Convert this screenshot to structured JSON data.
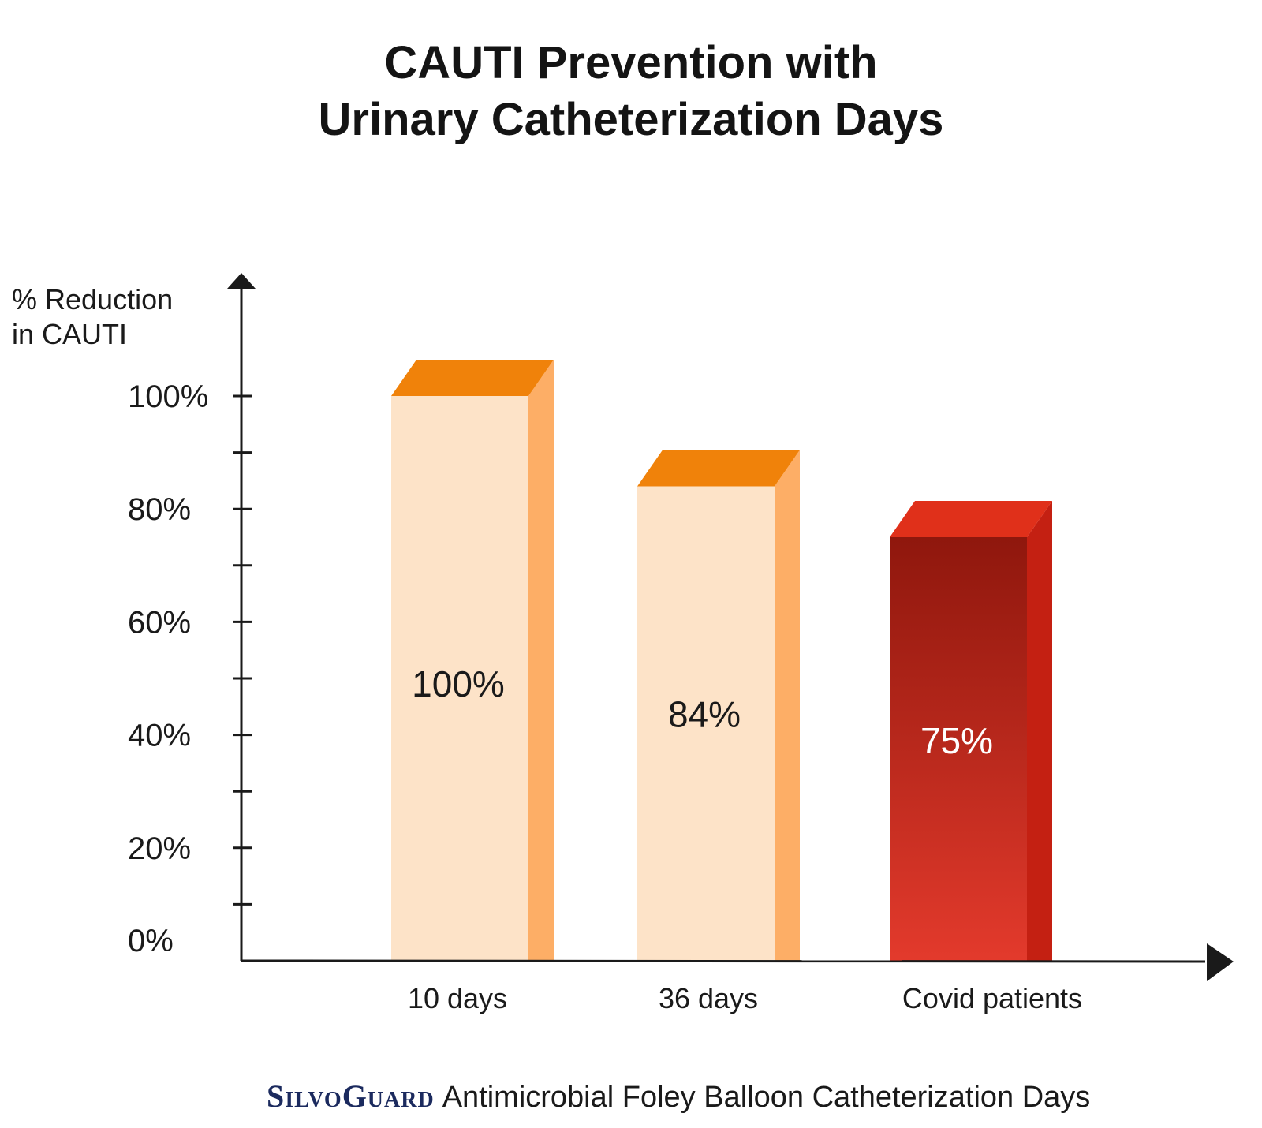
{
  "chart_data": {
    "type": "bar",
    "title_lines": [
      "CAUTI Prevention with",
      "Urinary Catheterization Days"
    ],
    "ylabel_lines": [
      "% Reduction",
      "in CAUTI"
    ],
    "categories": [
      "10 days",
      "36 days",
      "Covid patients"
    ],
    "values": [
      100,
      84,
      75
    ],
    "data_labels": [
      "100%",
      "84%",
      "75%"
    ],
    "ytick_labels": [
      "0%",
      "20%",
      "40%",
      "60%",
      "80%",
      "100%"
    ],
    "ytick_values": [
      0,
      20,
      40,
      60,
      80,
      100
    ],
    "ylim": [
      0,
      100
    ],
    "grid": false,
    "colors": {
      "light_front": "#fde3c8",
      "light_side": "#fdae66",
      "light_top": "#f0820a",
      "red_front_top": "#8f170d",
      "red_front_bottom": "#e33a2c",
      "red_side": "#c42012",
      "red_top": "#e0301a"
    }
  },
  "footer": {
    "brand": "SilvoGuard",
    "text": "Antimicrobial Foley Balloon Catheterization Days"
  }
}
